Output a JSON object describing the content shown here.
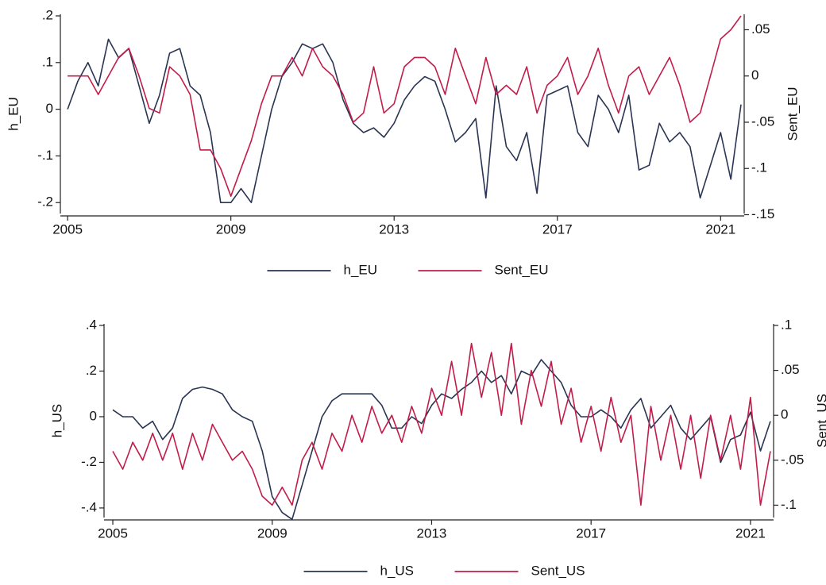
{
  "chart_data": [
    {
      "type": "line",
      "ylabel": "h_EU",
      "y2label": "Sent_EU",
      "x": [
        2005,
        2005.25,
        2005.5,
        2005.75,
        2006,
        2006.25,
        2006.5,
        2006.75,
        2007,
        2007.25,
        2007.5,
        2007.75,
        2008,
        2008.25,
        2008.5,
        2008.75,
        2009,
        2009.25,
        2009.5,
        2009.75,
        2010,
        2010.25,
        2010.5,
        2010.75,
        2011,
        2011.25,
        2011.5,
        2011.75,
        2012,
        2012.25,
        2012.5,
        2012.75,
        2013,
        2013.25,
        2013.5,
        2013.75,
        2014,
        2014.25,
        2014.5,
        2014.75,
        2015,
        2015.25,
        2015.5,
        2015.75,
        2016,
        2016.25,
        2016.5,
        2016.75,
        2017,
        2017.25,
        2017.5,
        2017.75,
        2018,
        2018.25,
        2018.5,
        2018.75,
        2019,
        2019.25,
        2019.5,
        2019.75,
        2020,
        2020.25,
        2020.5,
        2020.75,
        2021,
        2021.25,
        2021.5
      ],
      "xlim": [
        2004.9,
        2021.5
      ],
      "xticks": [
        2005,
        2009,
        2013,
        2017,
        2021
      ],
      "ylim": [
        -0.22,
        0.2
      ],
      "yticks": [
        {
          "value": 0.2,
          "label": ".2"
        },
        {
          "value": 0.1,
          "label": ".1"
        },
        0,
        {
          "value": -0.1,
          "label": "-.1"
        },
        {
          "value": -0.2,
          "label": "-.2"
        }
      ],
      "y2lim": [
        -0.147,
        0.065
      ],
      "y2ticks": [
        {
          "value": 0.05,
          "label": ".05"
        },
        0,
        {
          "value": -0.05,
          "label": "-.05"
        },
        {
          "value": -0.1,
          "label": "-.1"
        },
        {
          "value": -0.15,
          "label": "-.15"
        }
      ],
      "series": [
        {
          "name": "h_EU",
          "color": "#2a3553",
          "values": [
            0.0,
            0.06,
            0.1,
            0.05,
            0.15,
            0.11,
            0.13,
            0.05,
            -0.03,
            0.03,
            0.12,
            0.13,
            0.05,
            0.03,
            -0.05,
            -0.2,
            -0.2,
            -0.17,
            -0.2,
            -0.1,
            0.0,
            0.07,
            0.1,
            0.14,
            0.13,
            0.14,
            0.1,
            0.02,
            -0.03,
            -0.05,
            -0.04,
            -0.06,
            -0.03,
            0.02,
            0.05,
            0.07,
            0.06,
            0.0,
            -0.07,
            -0.05,
            -0.02,
            -0.19,
            0.05,
            -0.08,
            -0.11,
            -0.05,
            -0.18,
            0.03,
            0.04,
            0.05,
            -0.05,
            -0.08,
            0.03,
            0.0,
            -0.05,
            0.03,
            -0.13,
            -0.12,
            -0.03,
            -0.07,
            -0.05,
            -0.08,
            -0.19,
            -0.12,
            -0.05,
            -0.15,
            0.01
          ]
        },
        {
          "name": "Sent_EU",
          "color": "#c21d4a",
          "axis": "y2",
          "values": [
            0.0,
            0.0,
            0.0,
            -0.02,
            0.0,
            0.02,
            0.03,
            0.0,
            -0.035,
            -0.04,
            0.01,
            0.0,
            -0.02,
            -0.08,
            -0.08,
            -0.1,
            -0.13,
            -0.1,
            -0.07,
            -0.03,
            0.0,
            0.0,
            0.02,
            0.0,
            0.03,
            0.01,
            0.0,
            -0.02,
            -0.05,
            -0.04,
            0.01,
            -0.04,
            -0.03,
            0.01,
            0.02,
            0.02,
            0.01,
            -0.02,
            0.03,
            0.0,
            -0.03,
            0.02,
            -0.02,
            -0.01,
            -0.02,
            0.01,
            -0.04,
            -0.01,
            0.0,
            0.02,
            -0.02,
            0.0,
            0.03,
            -0.01,
            -0.04,
            0.0,
            0.01,
            -0.02,
            0.0,
            0.02,
            -0.01,
            -0.05,
            -0.04,
            0.0,
            0.04,
            0.05,
            0.065
          ]
        }
      ]
    },
    {
      "type": "line",
      "ylabel": "h_US",
      "y2label": "Sent_US",
      "x": [
        2005,
        2005.25,
        2005.5,
        2005.75,
        2006,
        2006.25,
        2006.5,
        2006.75,
        2007,
        2007.25,
        2007.5,
        2007.75,
        2008,
        2008.25,
        2008.5,
        2008.75,
        2009,
        2009.25,
        2009.5,
        2009.75,
        2010,
        2010.25,
        2010.5,
        2010.75,
        2011,
        2011.25,
        2011.5,
        2011.75,
        2012,
        2012.25,
        2012.5,
        2012.75,
        2013,
        2013.25,
        2013.5,
        2013.75,
        2014,
        2014.25,
        2014.5,
        2014.75,
        2015,
        2015.25,
        2015.5,
        2015.75,
        2016,
        2016.25,
        2016.5,
        2016.75,
        2017,
        2017.25,
        2017.5,
        2017.75,
        2018,
        2018.25,
        2018.5,
        2018.75,
        2019,
        2019.25,
        2019.5,
        2019.75,
        2020,
        2020.25,
        2020.5,
        2020.75,
        2021,
        2021.25,
        2021.5
      ],
      "xlim": [
        2004.86,
        2021.5
      ],
      "xticks": [
        2005,
        2009,
        2013,
        2017,
        2021
      ],
      "ylim": [
        -0.435,
        0.4
      ],
      "yticks": [
        {
          "value": 0.4,
          "label": ".4"
        },
        {
          "value": 0.2,
          "label": ".2"
        },
        0,
        {
          "value": -0.2,
          "label": "-.2"
        },
        {
          "value": -0.4,
          "label": "-.4"
        }
      ],
      "y2lim": [
        -0.112,
        0.1
      ],
      "y2ticks": [
        {
          "value": 0.1,
          "label": ".1"
        },
        {
          "value": 0.05,
          "label": ".05"
        },
        0,
        {
          "value": -0.05,
          "label": "-.05"
        },
        {
          "value": -0.1,
          "label": "-.1"
        }
      ],
      "series": [
        {
          "name": "h_US",
          "color": "#2a3553",
          "values": [
            0.03,
            0.0,
            0.0,
            -0.05,
            -0.02,
            -0.1,
            -0.05,
            0.08,
            0.12,
            0.13,
            0.12,
            0.1,
            0.03,
            0.0,
            -0.02,
            -0.15,
            -0.35,
            -0.42,
            -0.45,
            -0.3,
            -0.15,
            0.0,
            0.07,
            0.1,
            0.1,
            0.1,
            0.1,
            0.05,
            -0.05,
            -0.05,
            0.0,
            -0.03,
            0.05,
            0.1,
            0.08,
            0.12,
            0.15,
            0.2,
            0.15,
            0.18,
            0.1,
            0.2,
            0.18,
            0.25,
            0.2,
            0.15,
            0.05,
            0.0,
            0.0,
            0.03,
            0.0,
            -0.05,
            0.03,
            0.08,
            -0.05,
            0.0,
            0.05,
            -0.05,
            -0.1,
            -0.05,
            0.0,
            -0.2,
            -0.1,
            -0.08,
            0.02,
            -0.15,
            -0.02
          ]
        },
        {
          "name": "Sent_US",
          "color": "#c21d4a",
          "axis": "y2",
          "values": [
            -0.04,
            -0.06,
            -0.03,
            -0.05,
            -0.02,
            -0.05,
            -0.02,
            -0.06,
            -0.02,
            -0.05,
            -0.01,
            -0.03,
            -0.05,
            -0.04,
            -0.06,
            -0.09,
            -0.1,
            -0.08,
            -0.1,
            -0.05,
            -0.03,
            -0.06,
            -0.02,
            -0.04,
            0.0,
            -0.03,
            0.01,
            -0.02,
            0.0,
            -0.03,
            0.01,
            -0.02,
            0.03,
            0.0,
            0.06,
            0.0,
            0.08,
            0.02,
            0.07,
            0.0,
            0.08,
            -0.01,
            0.05,
            0.01,
            0.06,
            -0.01,
            0.03,
            -0.03,
            0.01,
            -0.04,
            0.02,
            -0.03,
            0.0,
            -0.1,
            0.01,
            -0.05,
            0.0,
            -0.06,
            0.0,
            -0.07,
            0.0,
            -0.05,
            0.0,
            -0.06,
            0.02,
            -0.1,
            -0.04
          ]
        }
      ]
    }
  ]
}
